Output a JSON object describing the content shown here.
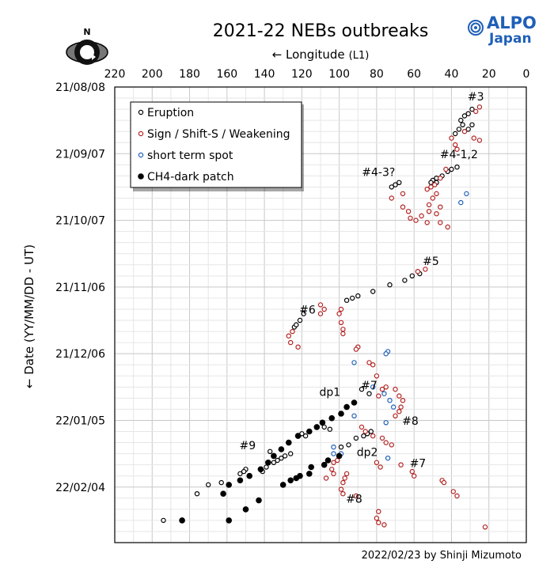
{
  "chart_data": {
    "type": "scatter",
    "title": "2021-22 NEBs outbreaks",
    "xlabel": "← Longitude",
    "xlabel_unit": "(L1)",
    "ylabel": "← Date (YY/MM/DD - UT)",
    "credit": "2022/02/23  by Shinji Mizumoto",
    "logo": {
      "line1": "ALPO",
      "line2": "Japan",
      "color": "#1f5fb8"
    },
    "compass_label": "N",
    "x_ticks": [
      "220",
      "200",
      "180",
      "160",
      "140",
      "120",
      "100",
      "80",
      "60",
      "40",
      "20",
      "0"
    ],
    "y_ticks": [
      "21/08/08",
      "21/09/07",
      "21/10/07",
      "21/11/06",
      "21/12/06",
      "22/01/05",
      "22/02/04"
    ],
    "xlim": [
      220,
      0
    ],
    "x_reversed": true,
    "ylim": [
      "2021-08-08",
      "2022-03-01"
    ],
    "grid": true,
    "legend_position": "top-left",
    "series": [
      {
        "name": "Eruption",
        "color": "#000000",
        "marker": "open-circle",
        "points": [
          {
            "x": 29,
            "y": "2021-08-18"
          },
          {
            "x": 31,
            "y": "2021-08-20"
          },
          {
            "x": 33,
            "y": "2021-08-21"
          },
          {
            "x": 35,
            "y": "2021-08-23"
          },
          {
            "x": 34,
            "y": "2021-08-25"
          },
          {
            "x": 36,
            "y": "2021-08-27"
          },
          {
            "x": 38,
            "y": "2021-08-29"
          },
          {
            "x": 31,
            "y": "2021-08-27"
          },
          {
            "x": 29,
            "y": "2021-08-25"
          },
          {
            "x": 37,
            "y": "2021-09-13"
          },
          {
            "x": 40,
            "y": "2021-09-14"
          },
          {
            "x": 42,
            "y": "2021-09-15"
          },
          {
            "x": 45,
            "y": "2021-09-17"
          },
          {
            "x": 48,
            "y": "2021-09-18"
          },
          {
            "x": 50,
            "y": "2021-09-19"
          },
          {
            "x": 51,
            "y": "2021-09-20"
          },
          {
            "x": 48,
            "y": "2021-09-20"
          },
          {
            "x": 68,
            "y": "2021-09-20"
          },
          {
            "x": 70,
            "y": "2021-09-21"
          },
          {
            "x": 72,
            "y": "2021-09-22"
          },
          {
            "x": 57,
            "y": "2021-10-31"
          },
          {
            "x": 61,
            "y": "2021-11-01"
          },
          {
            "x": 65,
            "y": "2021-11-03"
          },
          {
            "x": 73,
            "y": "2021-11-05"
          },
          {
            "x": 82,
            "y": "2021-11-08"
          },
          {
            "x": 90,
            "y": "2021-11-10"
          },
          {
            "x": 93,
            "y": "2021-11-11"
          },
          {
            "x": 96,
            "y": "2021-11-12"
          },
          {
            "x": 119,
            "y": "2021-11-18"
          },
          {
            "x": 121,
            "y": "2021-11-21"
          },
          {
            "x": 124,
            "y": "2021-11-24"
          },
          {
            "x": 123,
            "y": "2021-11-23"
          },
          {
            "x": 88,
            "y": "2021-12-22"
          },
          {
            "x": 84,
            "y": "2021-12-24"
          },
          {
            "x": 83,
            "y": "2022-01-10"
          },
          {
            "x": 85,
            "y": "2022-01-11"
          },
          {
            "x": 87,
            "y": "2022-01-12"
          },
          {
            "x": 91,
            "y": "2022-01-13"
          },
          {
            "x": 95,
            "y": "2022-01-16"
          },
          {
            "x": 99,
            "y": "2022-01-17"
          },
          {
            "x": 105,
            "y": "2022-01-09"
          },
          {
            "x": 108,
            "y": "2022-01-08"
          },
          {
            "x": 118,
            "y": "2022-01-12"
          },
          {
            "x": 120,
            "y": "2022-01-11"
          },
          {
            "x": 126,
            "y": "2022-01-20"
          },
          {
            "x": 129,
            "y": "2022-01-21"
          },
          {
            "x": 131,
            "y": "2022-01-22"
          },
          {
            "x": 133,
            "y": "2022-01-23"
          },
          {
            "x": 135,
            "y": "2022-01-24"
          },
          {
            "x": 137,
            "y": "2022-01-19"
          },
          {
            "x": 139,
            "y": "2022-01-26"
          },
          {
            "x": 141,
            "y": "2022-01-28"
          },
          {
            "x": 150,
            "y": "2022-01-27"
          },
          {
            "x": 151,
            "y": "2022-01-28"
          },
          {
            "x": 153,
            "y": "2022-01-29"
          },
          {
            "x": 163,
            "y": "2022-02-02"
          },
          {
            "x": 170,
            "y": "2022-02-03"
          },
          {
            "x": 176,
            "y": "2022-02-07"
          },
          {
            "x": 194,
            "y": "2022-02-19"
          }
        ]
      },
      {
        "name": "Sign / Shift-S / Weakening",
        "color": "#b22222",
        "marker": "open-circle",
        "points": [
          {
            "x": 27,
            "y": "2021-08-19"
          },
          {
            "x": 25,
            "y": "2021-08-17"
          },
          {
            "x": 33,
            "y": "2021-08-28"
          },
          {
            "x": 28,
            "y": "2021-08-31"
          },
          {
            "x": 25,
            "y": "2021-09-01"
          },
          {
            "x": 40,
            "y": "2021-08-31"
          },
          {
            "x": 38,
            "y": "2021-09-03"
          },
          {
            "x": 37,
            "y": "2021-09-05"
          },
          {
            "x": 43,
            "y": "2021-09-14"
          },
          {
            "x": 46,
            "y": "2021-09-18"
          },
          {
            "x": 49,
            "y": "2021-09-21"
          },
          {
            "x": 51,
            "y": "2021-09-22"
          },
          {
            "x": 53,
            "y": "2021-09-23"
          },
          {
            "x": 48,
            "y": "2021-09-25"
          },
          {
            "x": 50,
            "y": "2021-09-27"
          },
          {
            "x": 52,
            "y": "2021-09-30"
          },
          {
            "x": 46,
            "y": "2021-10-01"
          },
          {
            "x": 52,
            "y": "2021-10-03"
          },
          {
            "x": 48,
            "y": "2021-10-04"
          },
          {
            "x": 56,
            "y": "2021-10-05"
          },
          {
            "x": 66,
            "y": "2021-09-25"
          },
          {
            "x": 72,
            "y": "2021-09-27"
          },
          {
            "x": 66,
            "y": "2021-10-01"
          },
          {
            "x": 63,
            "y": "2021-10-03"
          },
          {
            "x": 62,
            "y": "2021-10-06"
          },
          {
            "x": 59,
            "y": "2021-10-07"
          },
          {
            "x": 53,
            "y": "2021-10-08"
          },
          {
            "x": 46,
            "y": "2021-10-08"
          },
          {
            "x": 42,
            "y": "2021-10-10"
          },
          {
            "x": 54,
            "y": "2021-10-29"
          },
          {
            "x": 58,
            "y": "2021-10-30"
          },
          {
            "x": 110,
            "y": "2021-11-14"
          },
          {
            "x": 108,
            "y": "2021-11-16"
          },
          {
            "x": 110,
            "y": "2021-11-18"
          },
          {
            "x": 99,
            "y": "2021-11-16"
          },
          {
            "x": 100,
            "y": "2021-11-18"
          },
          {
            "x": 99,
            "y": "2021-11-22"
          },
          {
            "x": 98,
            "y": "2021-11-25"
          },
          {
            "x": 98,
            "y": "2021-11-27"
          },
          {
            "x": 125,
            "y": "2021-11-26"
          },
          {
            "x": 127,
            "y": "2021-11-28"
          },
          {
            "x": 126,
            "y": "2021-12-01"
          },
          {
            "x": 122,
            "y": "2021-12-03"
          },
          {
            "x": 84,
            "y": "2021-12-10"
          },
          {
            "x": 90,
            "y": "2021-12-03"
          },
          {
            "x": 91,
            "y": "2021-12-04"
          },
          {
            "x": 82,
            "y": "2021-12-11"
          },
          {
            "x": 80,
            "y": "2021-12-16"
          },
          {
            "x": 75,
            "y": "2021-12-21"
          },
          {
            "x": 77,
            "y": "2021-12-22"
          },
          {
            "x": 79,
            "y": "2021-12-25"
          },
          {
            "x": 70,
            "y": "2021-12-22"
          },
          {
            "x": 68,
            "y": "2021-12-25"
          },
          {
            "x": 66,
            "y": "2021-12-27"
          },
          {
            "x": 67,
            "y": "2021-12-30"
          },
          {
            "x": 68,
            "y": "2022-01-01"
          },
          {
            "x": 70,
            "y": "2022-01-03"
          },
          {
            "x": 88,
            "y": "2022-01-08"
          },
          {
            "x": 86,
            "y": "2022-01-10"
          },
          {
            "x": 82,
            "y": "2022-01-12"
          },
          {
            "x": 77,
            "y": "2022-01-13"
          },
          {
            "x": 75,
            "y": "2022-01-15"
          },
          {
            "x": 72,
            "y": "2022-01-16"
          },
          {
            "x": 101,
            "y": "2022-01-23"
          },
          {
            "x": 103,
            "y": "2022-01-24"
          },
          {
            "x": 104,
            "y": "2022-01-27"
          },
          {
            "x": 103,
            "y": "2022-01-29"
          },
          {
            "x": 107,
            "y": "2022-01-31"
          },
          {
            "x": 96,
            "y": "2022-01-29"
          },
          {
            "x": 97,
            "y": "2022-01-31"
          },
          {
            "x": 98,
            "y": "2022-02-02"
          },
          {
            "x": 99,
            "y": "2022-02-05"
          },
          {
            "x": 98,
            "y": "2022-02-07"
          },
          {
            "x": 80,
            "y": "2022-01-24"
          },
          {
            "x": 78,
            "y": "2022-01-26"
          },
          {
            "x": 67,
            "y": "2022-01-25"
          },
          {
            "x": 61,
            "y": "2022-01-28"
          },
          {
            "x": 60,
            "y": "2022-01-30"
          },
          {
            "x": 91,
            "y": "2022-02-08"
          },
          {
            "x": 79,
            "y": "2022-02-15"
          },
          {
            "x": 80,
            "y": "2022-02-18"
          },
          {
            "x": 79,
            "y": "2022-02-20"
          },
          {
            "x": 76,
            "y": "2022-02-21"
          },
          {
            "x": 45,
            "y": "2022-02-01"
          },
          {
            "x": 44,
            "y": "2022-02-02"
          },
          {
            "x": 39,
            "y": "2022-02-06"
          },
          {
            "x": 37,
            "y": "2022-02-08"
          },
          {
            "x": 22,
            "y": "2022-02-22"
          }
        ]
      },
      {
        "name": "short term spot",
        "color": "#1f5fb8",
        "marker": "open-circle",
        "points": [
          {
            "x": 32,
            "y": "2021-09-25"
          },
          {
            "x": 35,
            "y": "2021-09-29"
          },
          {
            "x": 74,
            "y": "2021-12-05"
          },
          {
            "x": 75,
            "y": "2021-12-06"
          },
          {
            "x": 92,
            "y": "2021-12-10"
          },
          {
            "x": 82,
            "y": "2021-12-21"
          },
          {
            "x": 76,
            "y": "2021-12-24"
          },
          {
            "x": 73,
            "y": "2021-12-27"
          },
          {
            "x": 71,
            "y": "2021-12-30"
          },
          {
            "x": 92,
            "y": "2022-01-03"
          },
          {
            "x": 75,
            "y": "2022-01-06"
          },
          {
            "x": 103,
            "y": "2022-01-17"
          },
          {
            "x": 103,
            "y": "2022-01-20"
          },
          {
            "x": 99,
            "y": "2022-01-20"
          },
          {
            "x": 74,
            "y": "2022-01-22"
          }
        ]
      },
      {
        "name": "CH4-dark patch",
        "color": "#000000",
        "marker": "filled-circle",
        "points": [
          {
            "x": 92,
            "y": "2021-12-28"
          },
          {
            "x": 96,
            "y": "2021-12-30"
          },
          {
            "x": 99,
            "y": "2022-01-02"
          },
          {
            "x": 104,
            "y": "2022-01-04"
          },
          {
            "x": 109,
            "y": "2022-01-06"
          },
          {
            "x": 112,
            "y": "2022-01-08"
          },
          {
            "x": 116,
            "y": "2022-01-10"
          },
          {
            "x": 122,
            "y": "2022-01-12"
          },
          {
            "x": 127,
            "y": "2022-01-15"
          },
          {
            "x": 131,
            "y": "2022-01-18"
          },
          {
            "x": 135,
            "y": "2022-01-21"
          },
          {
            "x": 138,
            "y": "2022-01-24"
          },
          {
            "x": 142,
            "y": "2022-01-27"
          },
          {
            "x": 148,
            "y": "2022-01-30"
          },
          {
            "x": 153,
            "y": "2022-02-01"
          },
          {
            "x": 159,
            "y": "2022-02-03"
          },
          {
            "x": 162,
            "y": "2022-02-07"
          },
          {
            "x": 106,
            "y": "2022-01-23"
          },
          {
            "x": 108,
            "y": "2022-01-25"
          },
          {
            "x": 115,
            "y": "2022-01-26"
          },
          {
            "x": 116,
            "y": "2022-01-29"
          },
          {
            "x": 121,
            "y": "2022-01-30"
          },
          {
            "x": 123,
            "y": "2022-01-31"
          },
          {
            "x": 126,
            "y": "2022-02-01"
          },
          {
            "x": 130,
            "y": "2022-02-03"
          },
          {
            "x": 143,
            "y": "2022-02-10"
          },
          {
            "x": 150,
            "y": "2022-02-14"
          },
          {
            "x": 159,
            "y": "2022-02-19"
          },
          {
            "x": 184,
            "y": "2022-02-19"
          },
          {
            "x": 100,
            "y": "2022-01-21"
          }
        ]
      }
    ],
    "annotations": [
      {
        "text": "#3",
        "x": 27,
        "y": "2021-08-14"
      },
      {
        "text": "#4-1,2",
        "x": 36,
        "y": "2021-09-09"
      },
      {
        "text": "#4-3?",
        "x": 79,
        "y": "2021-09-17"
      },
      {
        "text": "#5",
        "x": 51,
        "y": "2021-10-27"
      },
      {
        "text": "#6",
        "x": 117,
        "y": "2021-11-18"
      },
      {
        "text": "#7",
        "x": 84,
        "y": "2021-12-22"
      },
      {
        "text": "dp1",
        "x": 105,
        "y": "2021-12-25"
      },
      {
        "text": "#8",
        "x": 62,
        "y": "2022-01-07"
      },
      {
        "text": "#9",
        "x": 149,
        "y": "2022-01-18"
      },
      {
        "text": "dp2",
        "x": 85,
        "y": "2022-01-21"
      },
      {
        "text": "#7",
        "x": 58,
        "y": "2022-01-26"
      },
      {
        "text": "#8",
        "x": 92,
        "y": "2022-02-11"
      }
    ]
  }
}
